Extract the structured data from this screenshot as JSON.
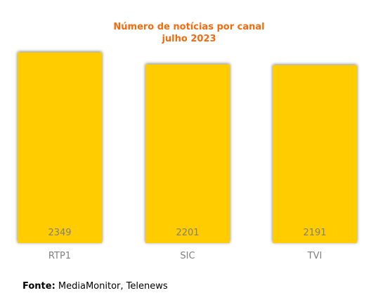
{
  "chart_data": {
    "type": "bar",
    "title": "Número de notícias por canal",
    "subtitle": "julho 2023",
    "categories": [
      "RTP1",
      "SIC",
      "TVI"
    ],
    "values": [
      2349,
      2201,
      2191
    ],
    "value_labels": [
      "2349",
      "2201",
      "2191"
    ],
    "bar_color": "#ffcc00",
    "title_color": "#f26b0f",
    "label_color": "#7f7f7f",
    "xlabel": "",
    "ylabel": "",
    "grid": false,
    "legend": "none"
  },
  "source": {
    "label": "Fonte:",
    "text": "MediaMonitor, Telenews"
  }
}
